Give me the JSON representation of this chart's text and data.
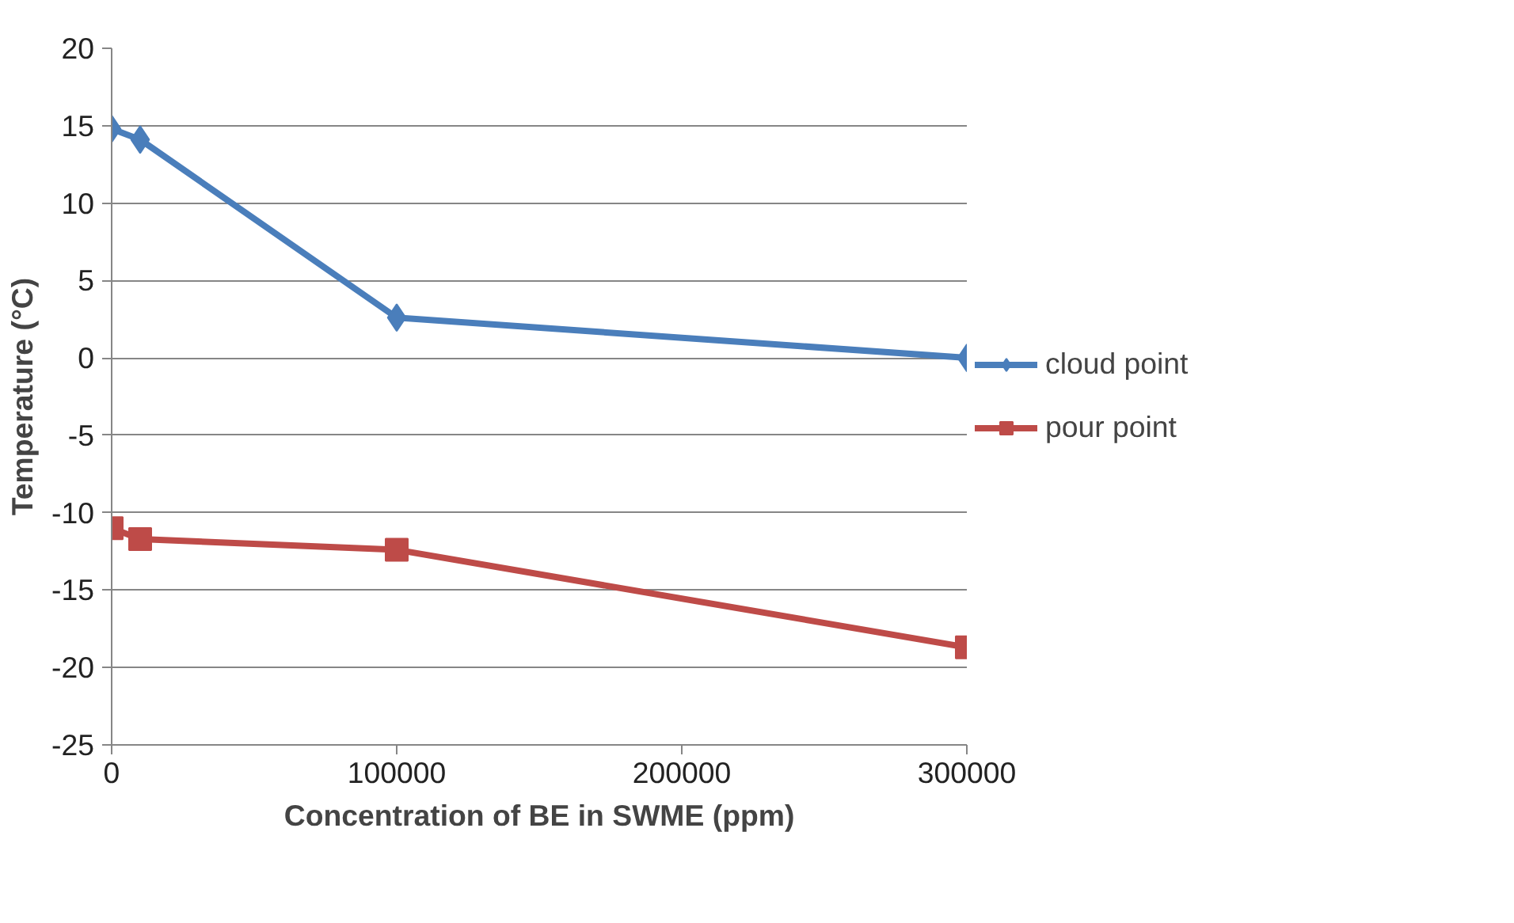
{
  "chart_data": {
    "type": "line",
    "xlabel": "Concentration of BE in SWME (ppm)",
    "ylabel": "Temperature (°C)",
    "x": [
      0,
      10000,
      100000,
      300000
    ],
    "series": [
      {
        "name": "cloud point",
        "color": "#4a7ebb",
        "marker": "diamond",
        "values": [
          14.8,
          14.1,
          2.6,
          0
        ]
      },
      {
        "name": "pour point",
        "color": "#be4b48",
        "marker": "square",
        "values": [
          -11.0,
          -11.7,
          -12.4,
          -18.7
        ]
      }
    ],
    "xlim": [
      0,
      300000
    ],
    "xticks": [
      0,
      100000,
      200000,
      300000
    ],
    "ylim": [
      -25,
      20
    ],
    "yticks": [
      -25,
      -20,
      -15,
      -10,
      -5,
      0,
      5,
      10,
      15,
      20
    ],
    "grid": "y",
    "legend": "right"
  }
}
